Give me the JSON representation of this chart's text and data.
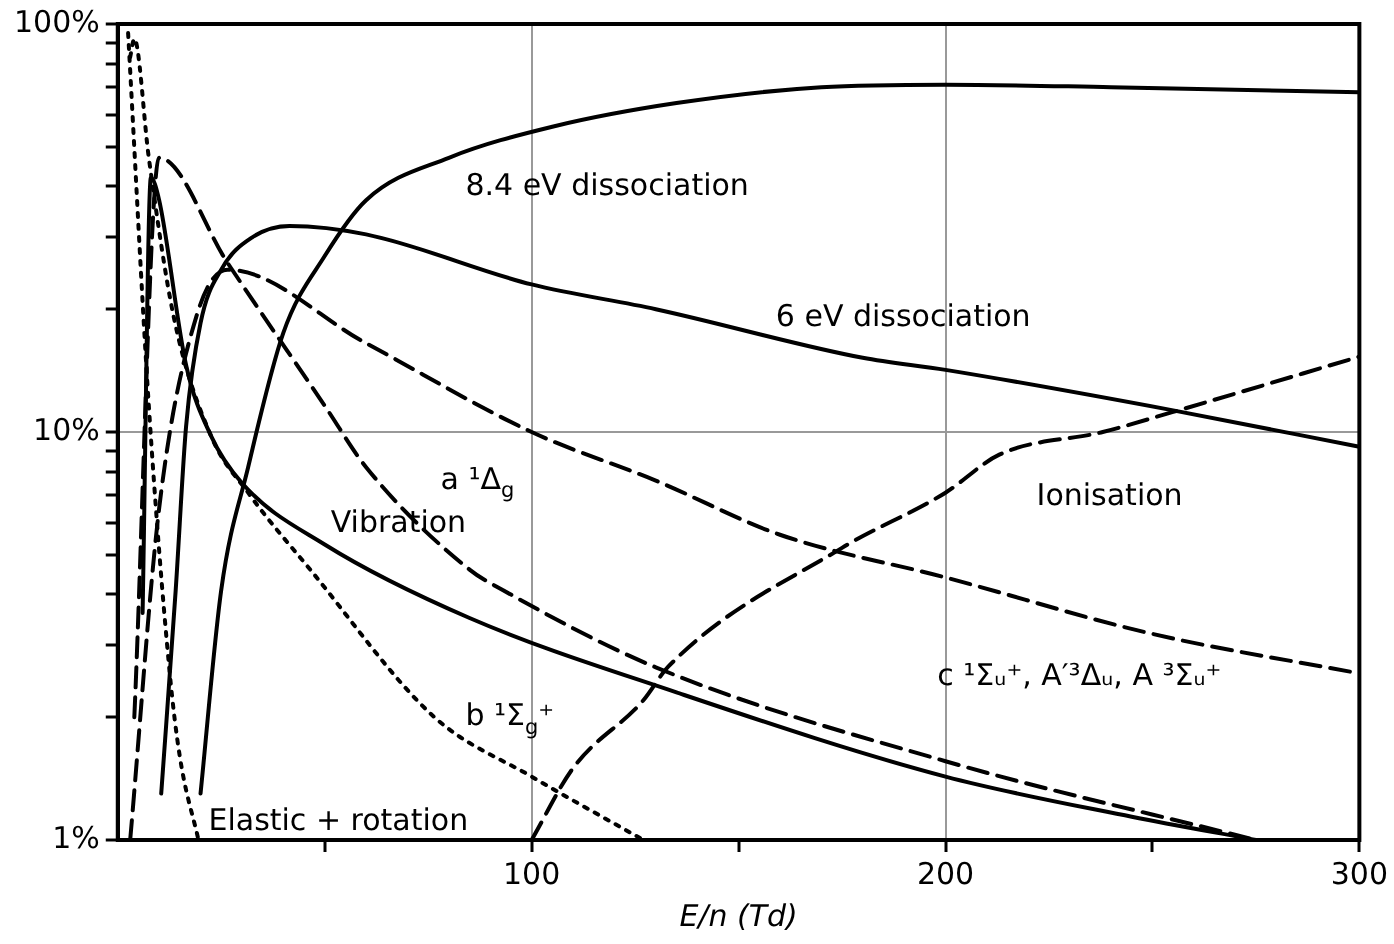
{
  "chart_data": {
    "type": "line",
    "xlabel": "E/n (Td)",
    "xlim": [
      0,
      300
    ],
    "ylim": [
      1,
      100
    ],
    "log": "y",
    "grid": true,
    "legend": false,
    "marker": "none",
    "xticks": [
      {
        "value": 50,
        "label": null
      },
      100,
      {
        "value": 150,
        "label": null
      },
      200,
      {
        "value": 250,
        "label": null
      },
      300
    ],
    "yticks": [
      {
        "value": 1,
        "label": "1%"
      },
      {
        "value": 2,
        "label": null
      },
      {
        "value": 3,
        "label": null
      },
      {
        "value": 4,
        "label": null
      },
      {
        "value": 5,
        "label": null
      },
      {
        "value": 6,
        "label": null
      },
      {
        "value": 7,
        "label": null
      },
      {
        "value": 8,
        "label": null
      },
      {
        "value": 9,
        "label": null
      },
      {
        "value": 10,
        "label": "10%"
      },
      {
        "value": 20,
        "label": null
      },
      {
        "value": 30,
        "label": null
      },
      {
        "value": 40,
        "label": null
      },
      {
        "value": 50,
        "label": null
      },
      {
        "value": 60,
        "label": null
      },
      {
        "value": 70,
        "label": null
      },
      {
        "value": 80,
        "label": null
      },
      {
        "value": 90,
        "label": null
      },
      {
        "value": 100,
        "label": "100%"
      }
    ],
    "series": [
      {
        "name": "8.4 eV dissociation",
        "color": "#000000",
        "line_style": "solid",
        "x": [
          20,
          25,
          31.5,
          40,
          50,
          60,
          80,
          105,
          135,
          170,
          200,
          240,
          300
        ],
        "values": [
          1.3,
          4.1,
          8.2,
          17.5,
          27,
          37,
          47,
          56,
          64,
          70,
          71,
          70,
          68
        ]
      },
      {
        "name": "6 eV dissociation",
        "color": "#000000",
        "line_style": "solid",
        "x": [
          10.5,
          14,
          16.5,
          20,
          25,
          32.5,
          41.5,
          60,
          100,
          130,
          180,
          200,
          255,
          300
        ],
        "values": [
          1.3,
          4.1,
          10.3,
          18.5,
          25,
          30,
          32,
          30.5,
          23,
          20,
          15.2,
          14.2,
          11.3,
          9.2
        ]
      },
      {
        "name": "a ¹Δ$_{g}$",
        "color": "#000000",
        "line_style": "dashed",
        "x": [
          4,
          10,
          26.5,
          50,
          60,
          85,
          93,
          130,
          200,
          275
        ],
        "values": [
          2,
          47,
          26,
          11.6,
          8.2,
          4.6,
          4.1,
          2.65,
          1.56,
          1
        ]
      },
      {
        "name": "Vibration",
        "color": "#000000",
        "line_style": "solid",
        "x": [
          6,
          8,
          10,
          16.5,
          22.5,
          30,
          50,
          85,
          135,
          200,
          245,
          275
        ],
        "values": [
          3.6,
          42,
          37,
          14.6,
          9.8,
          7.5,
          5.3,
          3.5,
          2.3,
          1.43,
          1.14,
          1
        ]
      },
      {
        "name": "b ¹Σ$_{g}$⁺",
        "color": "#000000",
        "line_style": "dotted",
        "x": [
          3,
          4,
          7.5,
          13.5,
          22.5,
          31.5,
          46.5,
          76.5,
          100,
          127
        ],
        "values": [
          83,
          92,
          47,
          19.2,
          9.8,
          7.1,
          4.6,
          2,
          1.43,
          1
        ]
      },
      {
        "name": "Elastic + rotation",
        "color": "#000000",
        "line_style": "dotted",
        "x": [
          2.5,
          7.5,
          12.5,
          15,
          19.5
        ],
        "values": [
          95,
          11.6,
          2.6,
          1.6,
          1
        ]
      },
      {
        "name": "c ¹Σᵤ⁺, A′³Δᵤ, A ³Σᵤ⁺",
        "color": "#000000",
        "line_style": "dashed",
        "x": [
          3,
          10,
          19,
          26.5,
          60,
          100,
          130,
          160,
          200,
          250,
          300
        ],
        "values": [
          1,
          6.5,
          19.2,
          25,
          16.5,
          10,
          7.6,
          5.6,
          4.4,
          3.2,
          2.56
        ]
      },
      {
        "name": "Ionisation",
        "color": "#000000",
        "line_style": "dashed",
        "x": [
          100,
          110,
          127,
          133,
          175,
          200,
          213,
          238,
          255,
          300
        ],
        "values": [
          1,
          1.5,
          2.2,
          2.66,
          5.2,
          7.1,
          8.8,
          10,
          11.2,
          15.3
        ]
      }
    ]
  }
}
